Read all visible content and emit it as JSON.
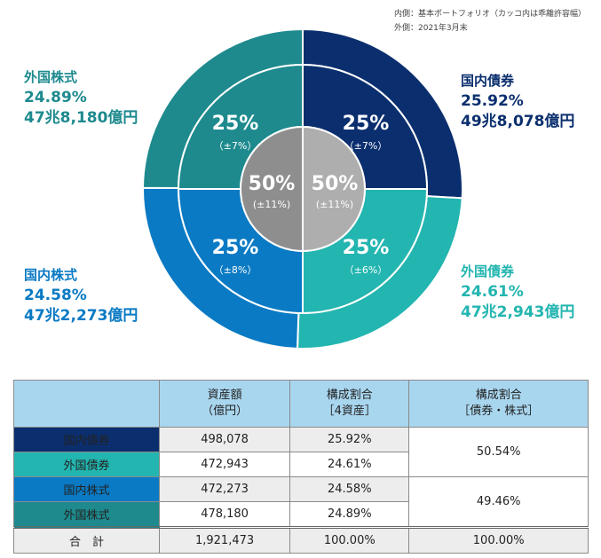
{
  "legend_note": {
    "inner": "内側：基本ポートフォリオ（カッコ内は乖離許容幅）",
    "outer": "外側：2021年3月末"
  },
  "chart_data": {
    "type": "pie",
    "outer_ring": [
      {
        "name": "国内債券",
        "percent": 25.92,
        "amount_label": "49兆8,078億円",
        "color": "#0b2f6e"
      },
      {
        "name": "外国債券",
        "percent": 24.61,
        "amount_label": "47兆2,943億円",
        "color": "#23b5b0"
      },
      {
        "name": "国内株式",
        "percent": 24.58,
        "amount_label": "47兆2,273億円",
        "color": "#0a7ac4"
      },
      {
        "name": "外国株式",
        "percent": 24.89,
        "amount_label": "47兆8,180億円",
        "color": "#1e8a8e"
      }
    ],
    "middle_ring": [
      {
        "asset": "国内債券",
        "label": "25%",
        "range": "（±7%）"
      },
      {
        "asset": "外国債券",
        "label": "25%",
        "range": "（±6%）"
      },
      {
        "asset": "国内株式",
        "label": "25%",
        "range": "（±8%）"
      },
      {
        "asset": "外国株式",
        "label": "25%",
        "range": "（±7%）"
      }
    ],
    "inner_circle": [
      {
        "label": "50%",
        "range": "(±11%)",
        "color": "#aeaeae"
      },
      {
        "label": "50%",
        "range": "(±11%)",
        "color": "#8e8e8e"
      }
    ]
  },
  "table": {
    "headers": [
      "",
      "資産額\n（億円）",
      "構成割合\n［4資産］",
      "構成割合\n［債券・株式］"
    ],
    "rows": [
      {
        "asset": "国内債券",
        "amount": "498,078",
        "share": "25.92%",
        "color": "#0b2f6e"
      },
      {
        "asset": "外国債券",
        "amount": "472,943",
        "share": "24.61%",
        "color": "#23b5b0"
      },
      {
        "asset": "国内株式",
        "amount": "472,273",
        "share": "24.58%",
        "color": "#0a7ac4"
      },
      {
        "asset": "外国株式",
        "amount": "478,180",
        "share": "24.89%",
        "color": "#1e8a8e"
      }
    ],
    "bonds_share": "50.54%",
    "stocks_share": "49.46%",
    "total": {
      "label": "合　計",
      "amount": "1,921,473",
      "share4": "100.00%",
      "share2": "100.00%"
    }
  }
}
